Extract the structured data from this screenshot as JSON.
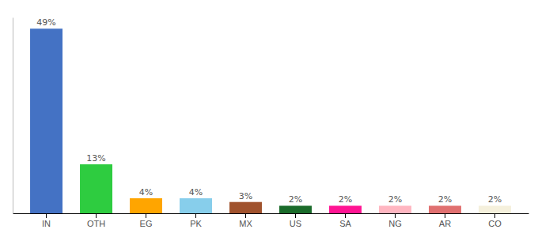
{
  "chart_data": {
    "type": "bar",
    "categories": [
      "IN",
      "OTH",
      "EG",
      "PK",
      "MX",
      "US",
      "SA",
      "NG",
      "AR",
      "CO"
    ],
    "values": [
      49,
      13,
      4,
      4,
      3,
      2,
      2,
      2,
      2,
      2
    ],
    "value_labels": [
      "49%",
      "13%",
      "4%",
      "4%",
      "3%",
      "2%",
      "2%",
      "2%",
      "2%",
      "2%"
    ],
    "colors": [
      "#4472C4",
      "#2ECC40",
      "#FFA500",
      "#87CEEB",
      "#A0522D",
      "#1A6B2A",
      "#FF1493",
      "#FFB6C1",
      "#E07070",
      "#F5F0DC"
    ],
    "ylim": [
      0,
      52
    ],
    "data_labels": true,
    "tick_labels": "x",
    "grid": false
  }
}
